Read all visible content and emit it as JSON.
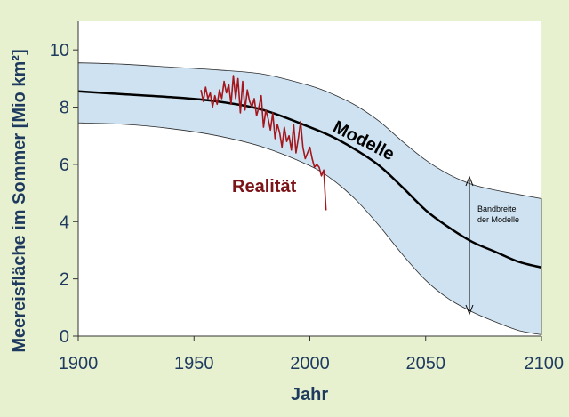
{
  "chart_data": {
    "type": "line",
    "xlabel": "Jahr",
    "ylabel": "Meereisfläche im Sommer  [Mio km²]",
    "xlim": [
      1900,
      2100
    ],
    "ylim": [
      0,
      11
    ],
    "xticks": [
      1900,
      1950,
      2000,
      2050,
      2100
    ],
    "yticks": [
      0,
      2,
      4,
      6,
      8,
      10
    ],
    "grid": false,
    "annotations": {
      "models_label": "Modelle",
      "reality_label": "Realität",
      "band_label_line1": "Bandbreite",
      "band_label_line2": "der Modelle"
    },
    "series": [
      {
        "key": "models_mean",
        "x": [
          1900,
          1920,
          1940,
          1960,
          1980,
          2000,
          2010,
          2020,
          2030,
          2040,
          2050,
          2060,
          2070,
          2080,
          2090,
          2100
        ],
        "y": [
          8.55,
          8.45,
          8.35,
          8.2,
          7.9,
          7.3,
          6.95,
          6.5,
          5.95,
          5.2,
          4.4,
          3.8,
          3.3,
          2.95,
          2.6,
          2.4
        ]
      },
      {
        "key": "models_band_upper",
        "x": [
          1900,
          1920,
          1940,
          1960,
          1980,
          2000,
          2010,
          2020,
          2030,
          2040,
          2050,
          2060,
          2070,
          2080,
          2090,
          2100
        ],
        "y": [
          9.55,
          9.5,
          9.4,
          9.3,
          9.15,
          8.75,
          8.45,
          8.05,
          7.5,
          6.8,
          6.15,
          5.65,
          5.3,
          5.1,
          4.95,
          4.8
        ]
      },
      {
        "key": "models_band_lower",
        "x": [
          1900,
          1920,
          1940,
          1960,
          1980,
          2000,
          2010,
          2020,
          2030,
          2040,
          2050,
          2060,
          2070,
          2080,
          2090,
          2100
        ],
        "y": [
          7.45,
          7.4,
          7.25,
          7.0,
          6.6,
          5.95,
          5.45,
          4.75,
          3.85,
          2.85,
          1.95,
          1.3,
          0.85,
          0.5,
          0.2,
          0.05
        ]
      },
      {
        "key": "observations",
        "x": [
          1953,
          1954,
          1955,
          1956,
          1957,
          1958,
          1959,
          1960,
          1961,
          1962,
          1963,
          1964,
          1965,
          1966,
          1967,
          1968,
          1969,
          1970,
          1971,
          1972,
          1973,
          1974,
          1975,
          1976,
          1977,
          1978,
          1979,
          1980,
          1981,
          1982,
          1983,
          1984,
          1985,
          1986,
          1987,
          1988,
          1989,
          1990,
          1991,
          1992,
          1993,
          1994,
          1995,
          1996,
          1997,
          1998,
          1999,
          2000,
          2001,
          2002,
          2003,
          2004,
          2005,
          2006,
          2007
        ],
        "y": [
          8.6,
          8.2,
          8.7,
          8.3,
          8.5,
          8.0,
          8.4,
          8.1,
          8.6,
          8.3,
          8.9,
          8.5,
          8.8,
          8.1,
          9.1,
          8.3,
          9.0,
          7.8,
          8.9,
          7.9,
          8.6,
          8.2,
          8.0,
          8.3,
          7.7,
          8.0,
          8.4,
          7.3,
          7.9,
          7.6,
          7.2,
          7.8,
          6.9,
          7.4,
          7.1,
          6.6,
          7.3,
          6.8,
          7.0,
          6.5,
          7.4,
          6.4,
          6.9,
          7.5,
          6.6,
          6.2,
          6.4,
          6.6,
          6.2,
          5.9,
          6.0,
          5.9,
          5.6,
          5.8,
          4.4
        ]
      }
    ],
    "colors": {
      "background": "#e7f1cf",
      "plot_background": "#ffffff",
      "band_fill": "#cfe2f1",
      "band_edge": "#2b2b2b",
      "models_line": "#000000",
      "observations_line": "#a3161c",
      "reality_text": "#7b1418",
      "axis_text": "#1e3a5f"
    }
  }
}
